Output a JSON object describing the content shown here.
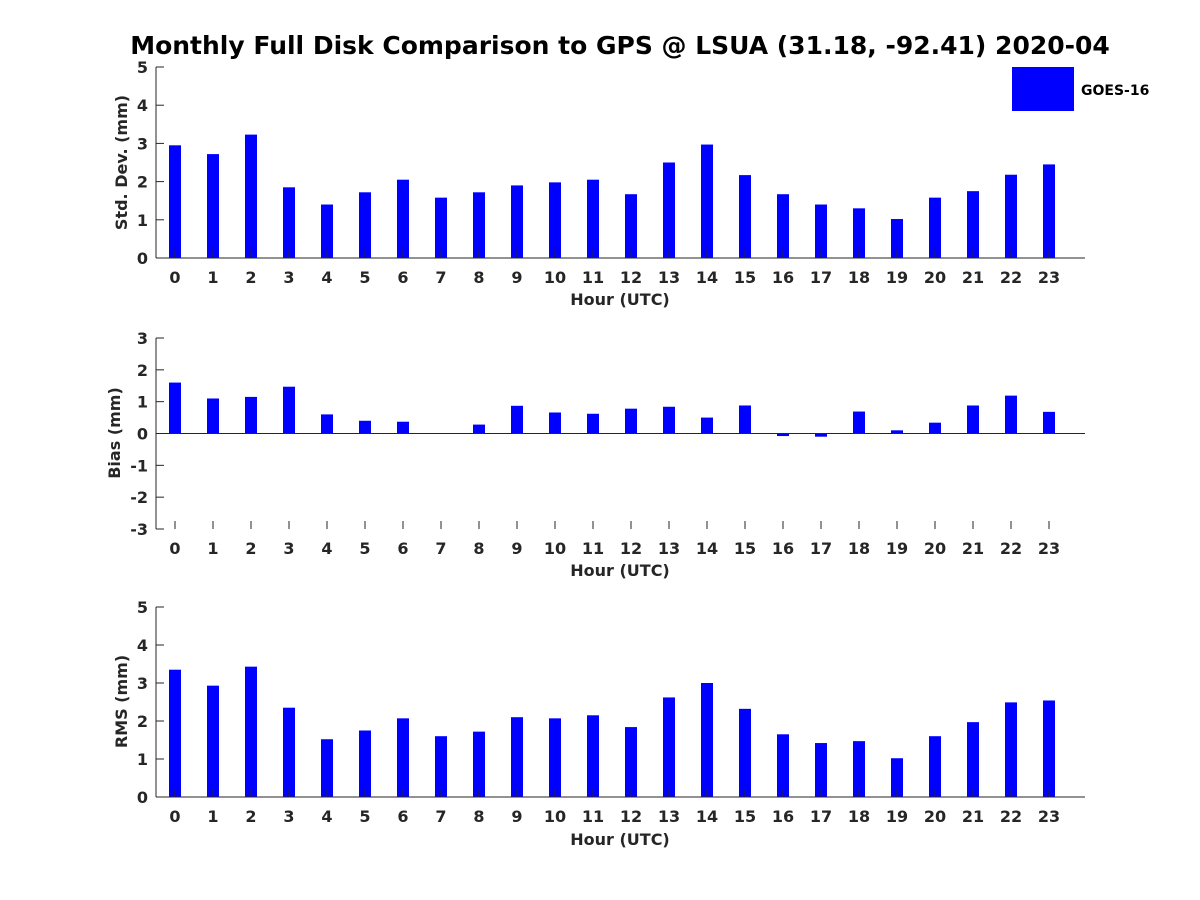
{
  "title": "Monthly Full Disk Comparison to GPS @ LSUA (31.18, -92.41) 2020-04",
  "legend": {
    "label": "GOES-16",
    "color": "#0000ff",
    "placement": "top-right"
  },
  "chart_data": [
    {
      "type": "bar",
      "xlabel": "Hour (UTC)",
      "ylabel": "Std. Dev. (mm)",
      "ylim": [
        0,
        5
      ],
      "yticks": [
        "0",
        "1",
        "2",
        "3",
        "4",
        "5"
      ],
      "categories": [
        "0",
        "1",
        "2",
        "3",
        "4",
        "5",
        "6",
        "7",
        "8",
        "9",
        "10",
        "11",
        "12",
        "13",
        "14",
        "15",
        "16",
        "17",
        "18",
        "19",
        "20",
        "21",
        "22",
        "23"
      ],
      "series": [
        {
          "name": "GOES-16",
          "color": "#0000ff",
          "values": [
            2.95,
            2.72,
            3.23,
            1.85,
            1.4,
            1.72,
            2.05,
            1.58,
            1.72,
            1.9,
            1.98,
            2.05,
            1.67,
            2.5,
            2.97,
            2.17,
            1.67,
            1.4,
            1.3,
            1.02,
            1.58,
            1.75,
            2.18,
            2.45
          ]
        }
      ]
    },
    {
      "type": "bar",
      "xlabel": "Hour (UTC)",
      "ylabel": "Bias (mm)",
      "ylim": [
        -3,
        3
      ],
      "yticks": [
        "-3",
        "-2",
        "-1",
        "0",
        "1",
        "2",
        "3"
      ],
      "categories": [
        "0",
        "1",
        "2",
        "3",
        "4",
        "5",
        "6",
        "7",
        "8",
        "9",
        "10",
        "11",
        "12",
        "13",
        "14",
        "15",
        "16",
        "17",
        "18",
        "19",
        "20",
        "21",
        "22",
        "23"
      ],
      "series": [
        {
          "name": "GOES-16",
          "color": "#0000ff",
          "values": [
            1.6,
            1.1,
            1.15,
            1.47,
            0.6,
            0.4,
            0.37,
            0.0,
            0.28,
            0.87,
            0.66,
            0.62,
            0.78,
            0.84,
            0.5,
            0.88,
            -0.08,
            -0.1,
            0.69,
            0.1,
            0.34,
            0.88,
            1.19,
            0.68
          ]
        }
      ]
    },
    {
      "type": "bar",
      "xlabel": "Hour (UTC)",
      "ylabel": "RMS (mm)",
      "ylim": [
        0,
        5
      ],
      "yticks": [
        "0",
        "1",
        "2",
        "3",
        "4",
        "5"
      ],
      "categories": [
        "0",
        "1",
        "2",
        "3",
        "4",
        "5",
        "6",
        "7",
        "8",
        "9",
        "10",
        "11",
        "12",
        "13",
        "14",
        "15",
        "16",
        "17",
        "18",
        "19",
        "20",
        "21",
        "22",
        "23"
      ],
      "series": [
        {
          "name": "GOES-16",
          "color": "#0000ff",
          "values": [
            3.35,
            2.93,
            3.43,
            2.35,
            1.52,
            1.75,
            2.07,
            1.6,
            1.72,
            2.1,
            2.07,
            2.15,
            1.84,
            2.62,
            3.0,
            2.32,
            1.65,
            1.42,
            1.47,
            1.02,
            1.6,
            1.97,
            2.49,
            2.54
          ]
        }
      ]
    }
  ]
}
